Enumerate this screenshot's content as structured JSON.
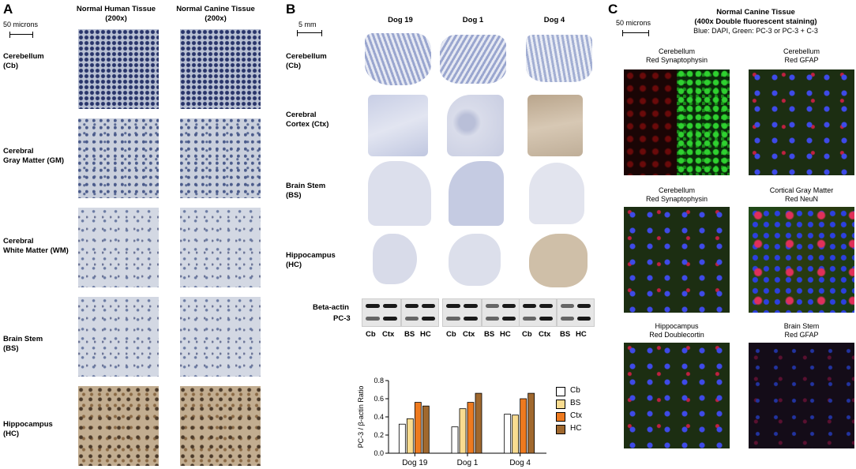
{
  "panelA": {
    "letter": "A",
    "scale": "50 microns",
    "col1": "Normal Human Tissue\n(200x)",
    "col2": "Normal Canine Tissue\n(200x)",
    "rows": [
      {
        "label": "Cerebellum\n(Cb)"
      },
      {
        "label": "Cerebral\nGray Matter (GM)"
      },
      {
        "label": "Cerebral\nWhite Matter (WM)"
      },
      {
        "label": "Brain Stem\n(BS)"
      },
      {
        "label": "Hippocampus\n(HC)"
      }
    ]
  },
  "panelB": {
    "letter": "B",
    "scale": "5 mm",
    "dogs": [
      "Dog 19",
      "Dog 1",
      "Dog 4"
    ],
    "rows": [
      {
        "label": "Cerebellum\n(Cb)"
      },
      {
        "label": "Cerebral\nCortex (Ctx)"
      },
      {
        "label": "Brain Stem\n(BS)"
      },
      {
        "label": "Hippocampus\n(HC)"
      }
    ],
    "blot_labels": [
      "Beta-actin",
      "PC-3"
    ],
    "lane_labels": [
      "Cb",
      "Ctx",
      "BS",
      "HC"
    ]
  },
  "panelC": {
    "letter": "C",
    "scale": "50 microns",
    "title": "Normal Canine Tissue",
    "subtitle": "(400x Double fluorescent staining)",
    "legend_line": "Blue: DAPI, Green: PC-3 or PC-3 + C-3",
    "images": [
      {
        "title": "Cerebellum\nRed Synaptophysin"
      },
      {
        "title": "Cerebellum\nRed GFAP"
      },
      {
        "title": "Cerebellum\nRed Synaptophysin"
      },
      {
        "title": "Cortical Gray Matter\nRed NeuN"
      },
      {
        "title": "Hippocampus\nRed Doublecortin"
      },
      {
        "title": "Brain Stem\nRed GFAP"
      }
    ]
  },
  "chart_data": {
    "type": "bar",
    "categories": [
      "Dog 19",
      "Dog 1",
      "Dog 4"
    ],
    "series": [
      {
        "name": "Cb",
        "values": [
          0.32,
          0.29,
          0.43
        ],
        "color": "#ffffff"
      },
      {
        "name": "BS",
        "values": [
          0.38,
          0.49,
          0.42
        ],
        "color": "#f9dc90"
      },
      {
        "name": "Ctx",
        "values": [
          0.56,
          0.56,
          0.6
        ],
        "color": "#ee7a1f"
      },
      {
        "name": "HC",
        "values": [
          0.52,
          0.66,
          0.66
        ],
        "color": "#a0682e"
      }
    ],
    "ylabel": "PC-3 / β-actin Ratio",
    "xlabel": "",
    "ylim": [
      0,
      0.8
    ],
    "yticks": [
      "0.0",
      "0.2",
      "0.4",
      "0.6",
      "0.8"
    ],
    "legend": "right"
  }
}
